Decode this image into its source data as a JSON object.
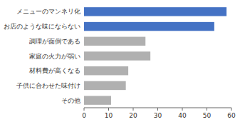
{
  "chart_data": {
    "type": "bar",
    "orientation": "horizontal",
    "categories": [
      "その他",
      "子供に合わせた味付け",
      "材料費が高くなる",
      "家庭の火力が弱い",
      "調理が面倒である",
      "お店のような味にならない",
      "メニューのマンネリ化"
    ],
    "values": [
      11,
      17,
      18,
      27,
      25,
      53,
      58
    ],
    "colors": [
      "#b0b0b0",
      "#b0b0b0",
      "#b0b0b0",
      "#b0b0b0",
      "#b0b0b0",
      "#4472c4",
      "#4472c4"
    ],
    "xlim": [
      0,
      60
    ],
    "xticks": [
      0,
      10,
      20,
      30,
      40,
      50,
      60
    ],
    "grid": false
  }
}
